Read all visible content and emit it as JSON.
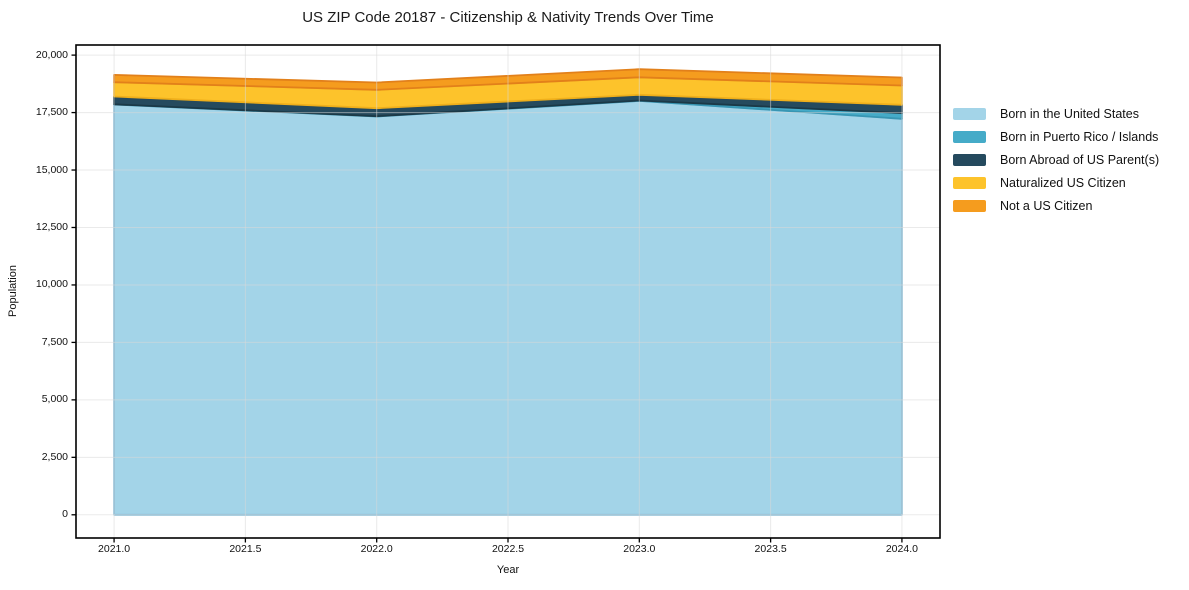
{
  "figure": {
    "title": "US ZIP Code 20187 - Citizenship & Nativity Trends Over Time"
  },
  "chart_data": {
    "type": "area",
    "stacked": true,
    "title": "US ZIP Code 20187 - Citizenship & Nativity Trends Over Time",
    "xlabel": "Year",
    "ylabel": "Population",
    "x": [
      2021,
      2022,
      2023,
      2024
    ],
    "series": [
      {
        "name": "Born in the United States",
        "color": "#A3D4E8",
        "edge": "#7FB9D6",
        "values": [
          17850,
          17330,
          18010,
          17230
        ]
      },
      {
        "name": "Born in Puerto Rico / Islands",
        "color": "#45ABC8",
        "edge": "#3896B3",
        "values": [
          10,
          10,
          15,
          245
        ]
      },
      {
        "name": "Born Abroad of US Parent(s)",
        "color": "#254A5E",
        "edge": "#1B3947",
        "values": [
          340,
          350,
          250,
          365
        ]
      },
      {
        "name": "Naturalized US Citizen",
        "color": "#FDC32B",
        "edge": "#EFAF1B",
        "values": [
          620,
          800,
          760,
          840
        ]
      },
      {
        "name": "Not a US Citizen",
        "color": "#F59C1E",
        "edge": "#E2801A",
        "values": [
          320,
          320,
          350,
          345
        ]
      }
    ],
    "totals_by_year": [
      19140,
      18810,
      19385,
      19025
    ],
    "xticks": {
      "values": [
        2021,
        2021.5,
        2022,
        2022.5,
        2023,
        2023.5,
        2024
      ],
      "labels": [
        "2021.0",
        "2021.5",
        "2022.0",
        "2022.5",
        "2023.0",
        "2023.5",
        "2024.0"
      ]
    },
    "yticks": {
      "values": [
        0,
        2500,
        5000,
        7500,
        10000,
        12500,
        15000,
        17500,
        20000
      ],
      "labels": [
        "0",
        "2,500",
        "5,000",
        "7,500",
        "10,000",
        "12,500",
        "15,000",
        "17,500",
        "20,000"
      ]
    },
    "xlim": [
      2020.855,
      2024.145
    ],
    "ylim": [
      -1010,
      20440
    ],
    "grid": true,
    "grid_color": "#d9d9d9",
    "legend_position": "right-outside",
    "background": "#ffffff"
  }
}
